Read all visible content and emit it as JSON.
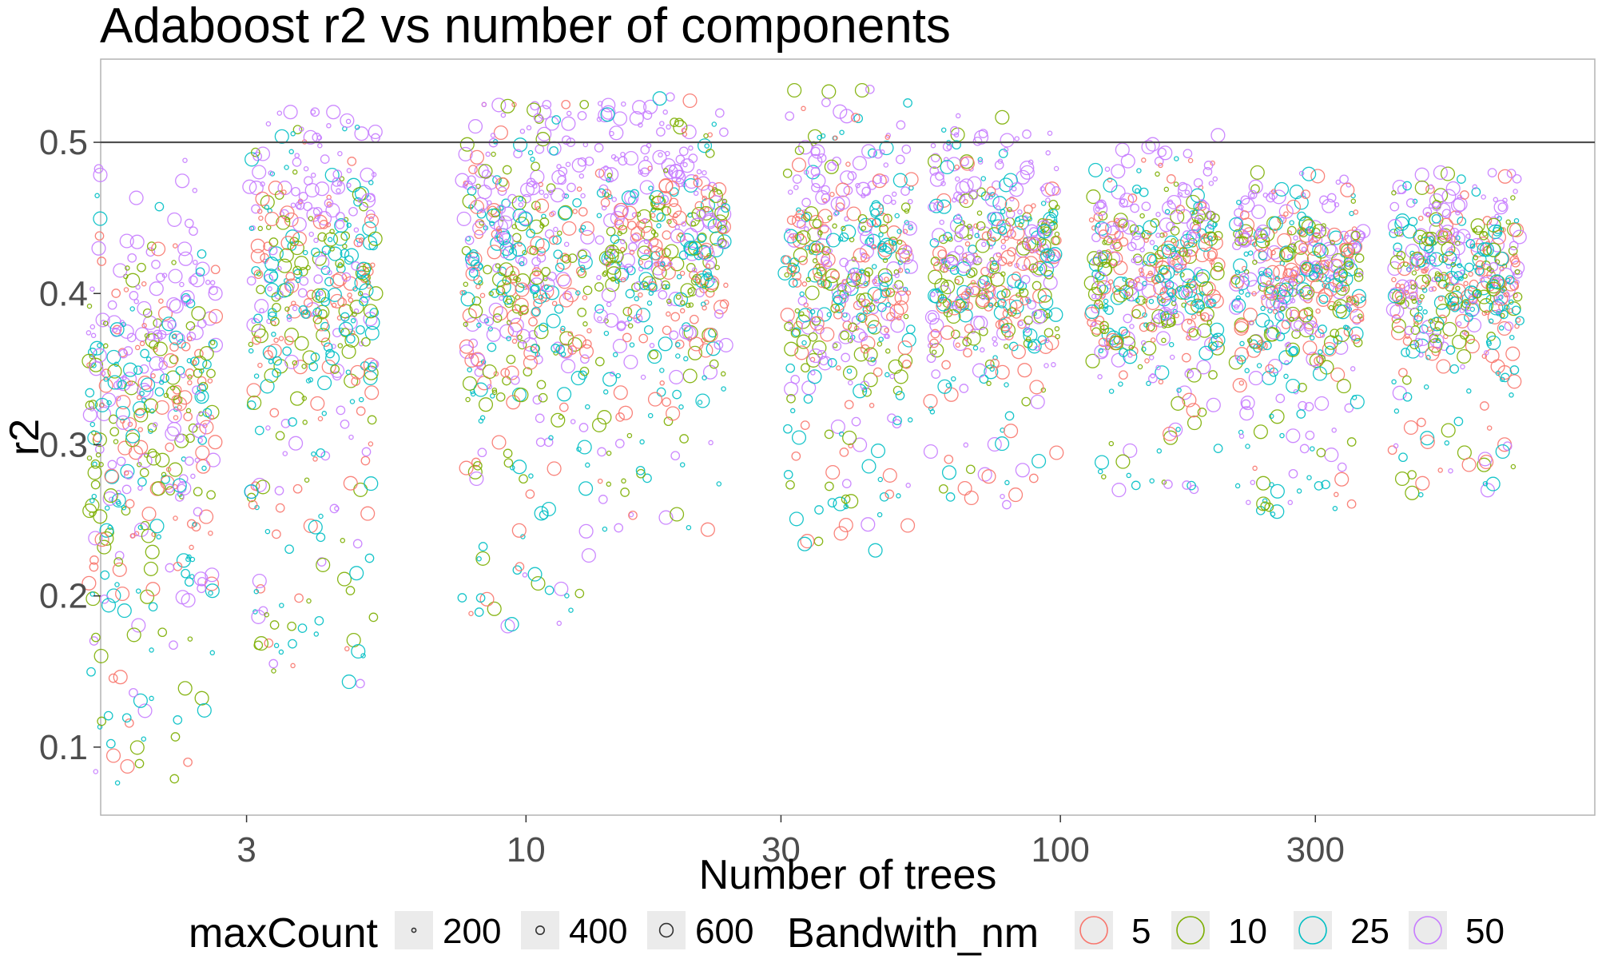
{
  "chart_data": {
    "type": "scatter",
    "title": "Adaboost r2 vs number of components",
    "xlabel": "Number of trees",
    "ylabel": "r2",
    "x_scale": "log",
    "x_ticks": [
      3,
      10,
      30,
      100,
      300
    ],
    "x_tick_labels": [
      "3",
      "10",
      "30",
      "100",
      "300"
    ],
    "xlim": [
      1.6,
      1000
    ],
    "y_ticks": [
      0.1,
      0.2,
      0.3,
      0.4,
      0.5
    ],
    "y_tick_labels": [
      "0.1",
      "0.2",
      "0.3",
      "0.4",
      "0.5"
    ],
    "ylim": [
      0.055,
      0.555
    ],
    "reference_line": {
      "y": 0.5
    },
    "grid": false,
    "point_style": "hollow-circle",
    "jitter": "horizontal",
    "size_legend": {
      "title": "maxCount",
      "values": [
        200,
        400,
        600
      ],
      "labels": [
        "200",
        "400",
        "600"
      ]
    },
    "color_legend": {
      "title": "Bandwith_nm",
      "labels": [
        "5",
        "10",
        "25",
        "50"
      ],
      "colors": [
        "#F8766D",
        "#7CAE00",
        "#00BFC4",
        "#C77CFF"
      ]
    },
    "legend_position": "bottom",
    "groups": [
      {
        "x": 2,
        "r2_min": 0.075,
        "r2_max": 0.49,
        "r2_center": 0.33
      },
      {
        "x": 4,
        "r2_min": 0.14,
        "r2_max": 0.52,
        "r2_center": 0.41
      },
      {
        "x": 10,
        "r2_min": 0.175,
        "r2_max": 0.525,
        "r2_center": 0.42
      },
      {
        "x": 18,
        "r2_min": 0.24,
        "r2_max": 0.53,
        "r2_center": 0.43
      },
      {
        "x": 40,
        "r2_min": 0.23,
        "r2_max": 0.535,
        "r2_center": 0.42
      },
      {
        "x": 75,
        "r2_min": 0.26,
        "r2_max": 0.52,
        "r2_center": 0.42
      },
      {
        "x": 150,
        "r2_min": 0.27,
        "r2_max": 0.505,
        "r2_center": 0.415
      },
      {
        "x": 280,
        "r2_min": 0.25,
        "r2_max": 0.48,
        "r2_center": 0.41
      },
      {
        "x": 550,
        "r2_min": 0.265,
        "r2_max": 0.48,
        "r2_center": 0.41
      }
    ]
  }
}
